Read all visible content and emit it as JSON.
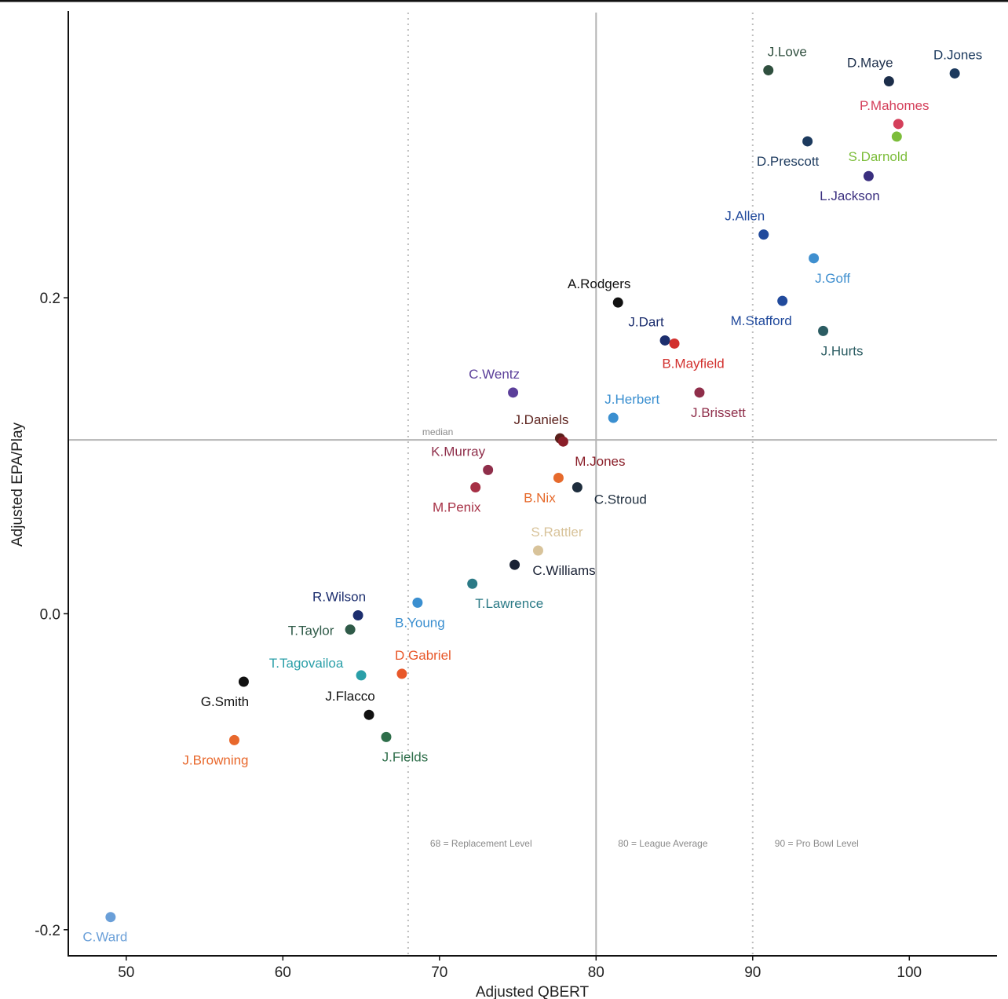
{
  "chart_data": {
    "type": "scatter",
    "xlabel": "Adjusted QBERT",
    "ylabel": "Adjusted EPA/Play",
    "xlim": [
      46.3,
      105.6
    ],
    "ylim": [
      -0.2165,
      0.3815
    ],
    "x_ticks": [
      50,
      60,
      70,
      80,
      90,
      100
    ],
    "y_ticks": [
      0.2,
      0.0,
      -0.2
    ],
    "y_tick_labels": [
      "0.2",
      "0.0",
      "-0.2"
    ],
    "grid": false,
    "legend": "none",
    "median": {
      "x": 80,
      "y": 0.11,
      "label": "median"
    },
    "reference_lines": [
      {
        "x": 68,
        "style": "dotted",
        "label": "68 = Replacement Level"
      },
      {
        "x": 80,
        "style": "solid",
        "label": "80 = League Average"
      },
      {
        "x": 90,
        "style": "dotted",
        "label": "90 = Pro Bowl Level"
      }
    ],
    "points": [
      {
        "name": "J.Love",
        "x": 91.0,
        "y": 0.344,
        "color": "#2f4f3e"
      },
      {
        "name": "D.Maye",
        "x": 98.7,
        "y": 0.337,
        "color": "#1c2e4a"
      },
      {
        "name": "D.Jones",
        "x": 102.9,
        "y": 0.342,
        "color": "#1c3a5e"
      },
      {
        "name": "P.Mahomes",
        "x": 99.3,
        "y": 0.31,
        "color": "#d43f5a"
      },
      {
        "name": "S.Darnold",
        "x": 99.2,
        "y": 0.302,
        "color": "#7cbd3a"
      },
      {
        "name": "D.Prescott",
        "x": 93.5,
        "y": 0.299,
        "color": "#1c3a5e"
      },
      {
        "name": "L.Jackson",
        "x": 97.4,
        "y": 0.277,
        "color": "#3a2f7f"
      },
      {
        "name": "J.Allen",
        "x": 90.7,
        "y": 0.24,
        "color": "#214a9c"
      },
      {
        "name": "J.Goff",
        "x": 93.9,
        "y": 0.225,
        "color": "#3f8fcf"
      },
      {
        "name": "A.Rodgers",
        "x": 81.4,
        "y": 0.197,
        "color": "#111111"
      },
      {
        "name": "M.Stafford",
        "x": 91.9,
        "y": 0.198,
        "color": "#214a9c"
      },
      {
        "name": "J.Hurts",
        "x": 94.5,
        "y": 0.179,
        "color": "#2b5c62"
      },
      {
        "name": "J.Dart",
        "x": 84.4,
        "y": 0.173,
        "color": "#1c2e6e"
      },
      {
        "name": "B.Mayfield",
        "x": 85.0,
        "y": 0.171,
        "color": "#d2302d"
      },
      {
        "name": "C.Wentz",
        "x": 74.7,
        "y": 0.14,
        "color": "#5b3f9a"
      },
      {
        "name": "J.Brissett",
        "x": 86.6,
        "y": 0.14,
        "color": "#8f2e4a"
      },
      {
        "name": "J.Herbert",
        "x": 81.1,
        "y": 0.124,
        "color": "#3a8fd0"
      },
      {
        "name": "J.Daniels",
        "x": 77.7,
        "y": 0.111,
        "color": "#5a1f1a"
      },
      {
        "name": "M.Jones",
        "x": 77.9,
        "y": 0.109,
        "color": "#8a1e28"
      },
      {
        "name": "K.Murray",
        "x": 73.1,
        "y": 0.091,
        "color": "#8f2e4a"
      },
      {
        "name": "M.Penix",
        "x": 72.3,
        "y": 0.08,
        "color": "#a63045"
      },
      {
        "name": "B.Nix",
        "x": 77.6,
        "y": 0.086,
        "color": "#e66a2c"
      },
      {
        "name": "C.Stroud",
        "x": 78.8,
        "y": 0.08,
        "color": "#1e2d3d"
      },
      {
        "name": "S.Rattler",
        "x": 76.3,
        "y": 0.04,
        "color": "#d8c39a"
      },
      {
        "name": "C.Williams",
        "x": 74.8,
        "y": 0.031,
        "color": "#1a2235"
      },
      {
        "name": "T.Lawrence",
        "x": 72.1,
        "y": 0.019,
        "color": "#2b7a86"
      },
      {
        "name": "B.Young",
        "x": 68.6,
        "y": 0.007,
        "color": "#3a8fd0"
      },
      {
        "name": "R.Wilson",
        "x": 64.8,
        "y": -0.001,
        "color": "#1c2e6e"
      },
      {
        "name": "T.Taylor",
        "x": 64.3,
        "y": -0.01,
        "color": "#2f5a48"
      },
      {
        "name": "T.Tagovailoa",
        "x": 65.0,
        "y": -0.039,
        "color": "#2a9fa8"
      },
      {
        "name": "D.Gabriel",
        "x": 67.6,
        "y": -0.038,
        "color": "#e8582a"
      },
      {
        "name": "G.Smith",
        "x": 57.5,
        "y": -0.043,
        "color": "#111111"
      },
      {
        "name": "J.Flacco",
        "x": 65.5,
        "y": -0.064,
        "color": "#111111"
      },
      {
        "name": "J.Browning",
        "x": 56.9,
        "y": -0.08,
        "color": "#e8682c"
      },
      {
        "name": "J.Fields",
        "x": 66.6,
        "y": -0.078,
        "color": "#2e6e4a"
      },
      {
        "name": "C.Ward",
        "x": 49.0,
        "y": -0.192,
        "color": "#6a9fd8"
      }
    ]
  }
}
